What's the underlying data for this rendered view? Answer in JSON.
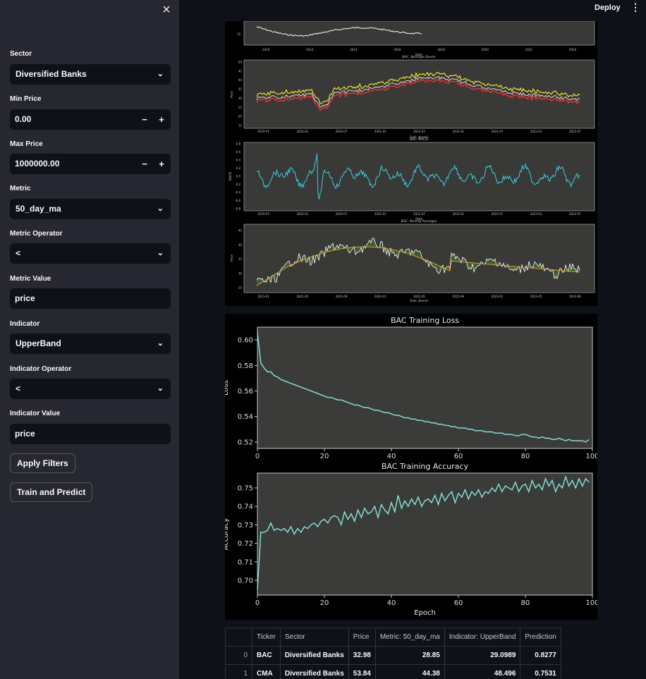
{
  "sidebar": {
    "close_icon": "close-icon",
    "sector": {
      "label": "Sector",
      "value": "Diversified Banks"
    },
    "min_price": {
      "label": "Min Price",
      "value": "0.00",
      "minus": "−",
      "plus": "+"
    },
    "max_price": {
      "label": "Max Price",
      "value": "1000000.00",
      "minus": "−",
      "plus": "+"
    },
    "metric": {
      "label": "Metric",
      "value": "50_day_ma"
    },
    "metric_operator": {
      "label": "Metric Operator",
      "value": "<"
    },
    "metric_value": {
      "label": "Metric Value",
      "value": "price"
    },
    "indicator": {
      "label": "Indicator",
      "value": "UpperBand"
    },
    "indicator_operator": {
      "label": "Indicator Operator",
      "value": "<"
    },
    "indicator_value": {
      "label": "Indicator Value",
      "value": "price"
    },
    "apply_button": "Apply Filters",
    "train_button": "Train and Predict"
  },
  "header": {
    "deploy": "Deploy",
    "menu_icon": "kebab-menu-icon"
  },
  "technical_figure": {
    "top_xticks": [
      "2010",
      "2012",
      "2014",
      "2016",
      "2018",
      "2020",
      "2022",
      "2024"
    ],
    "top_ytick": "10",
    "top_xlabel": "Date",
    "bollinger": {
      "title": "BAC: Bollinger Bands",
      "ylabel": "Price",
      "xlabel": "Date_altered",
      "yticks": [
        "50",
        "45",
        "40",
        "35",
        "30",
        "25",
        "20",
        "15"
      ],
      "xticks": [
        "2019-07",
        "2020-01",
        "2020-07",
        "2021-01",
        "2021-07",
        "2022-01",
        "2022-07",
        "2023-01",
        "2023-07"
      ]
    },
    "macd": {
      "title": "BAC: MACD",
      "ylabel": "MACD",
      "xlabel": "Date",
      "yticks": [
        "0.8",
        "0.6",
        "0.4",
        "0.2",
        "0.0",
        "-0.2",
        "-0.4",
        "-0.6",
        "-0.8"
      ],
      "xticks": [
        "2019-07",
        "2020-01",
        "2020-07",
        "2021-01",
        "2021-07",
        "2022-01",
        "2022-07",
        "2023-01",
        "2023-07"
      ]
    },
    "moving_avg": {
      "title": "BAC: Moving Averages",
      "ylabel": "Price",
      "xlabel": "Date_altered",
      "yticks": [
        "45",
        "40",
        "35",
        "30",
        "25"
      ],
      "xticks": [
        "2021-01",
        "2021-05",
        "2021-09",
        "2022-01",
        "2022-05",
        "2022-09",
        "2023-01",
        "2023-05",
        "2023-09"
      ]
    },
    "colors": {
      "price": "#ffffff",
      "upper": "#e6e62a",
      "lower": "#e03030",
      "macd": "#3ad0e0",
      "ma": "#e0a020"
    }
  },
  "chart_data": [
    {
      "type": "line",
      "title": "BAC Training Loss",
      "xlabel": "",
      "ylabel": "Loss",
      "xlim": [
        0,
        100
      ],
      "ylim": [
        0.515,
        0.61
      ],
      "xticks": [
        0,
        20,
        40,
        60,
        80,
        100
      ],
      "yticks": [
        0.52,
        0.54,
        0.56,
        0.58,
        0.6
      ],
      "x": [
        0,
        1,
        2,
        3,
        4,
        5,
        6,
        7,
        8,
        9,
        10,
        11,
        12,
        13,
        14,
        15,
        16,
        17,
        18,
        19,
        20,
        21,
        22,
        23,
        24,
        25,
        26,
        27,
        28,
        29,
        30,
        31,
        32,
        33,
        34,
        35,
        36,
        37,
        38,
        39,
        40,
        41,
        42,
        43,
        44,
        45,
        46,
        47,
        48,
        49,
        50,
        51,
        52,
        53,
        54,
        55,
        56,
        57,
        58,
        59,
        60,
        61,
        62,
        63,
        64,
        65,
        66,
        67,
        68,
        69,
        70,
        71,
        72,
        73,
        74,
        75,
        76,
        77,
        78,
        79,
        80,
        81,
        82,
        83,
        84,
        85,
        86,
        87,
        88,
        89,
        90,
        91,
        92,
        93,
        94,
        95,
        96,
        97,
        98,
        99
      ],
      "y": [
        0.606,
        0.582,
        0.578,
        0.575,
        0.575,
        0.572,
        0.571,
        0.569,
        0.568,
        0.567,
        0.566,
        0.565,
        0.564,
        0.563,
        0.562,
        0.561,
        0.56,
        0.559,
        0.558,
        0.557,
        0.556,
        0.555,
        0.555,
        0.554,
        0.553,
        0.553,
        0.552,
        0.551,
        0.55,
        0.549,
        0.549,
        0.548,
        0.547,
        0.547,
        0.546,
        0.545,
        0.545,
        0.544,
        0.543,
        0.543,
        0.542,
        0.541,
        0.541,
        0.54,
        0.539,
        0.539,
        0.538,
        0.538,
        0.537,
        0.537,
        0.536,
        0.536,
        0.535,
        0.535,
        0.534,
        0.534,
        0.533,
        0.533,
        0.532,
        0.532,
        0.531,
        0.531,
        0.531,
        0.53,
        0.53,
        0.529,
        0.529,
        0.529,
        0.528,
        0.528,
        0.528,
        0.527,
        0.527,
        0.527,
        0.526,
        0.526,
        0.526,
        0.525,
        0.525,
        0.526,
        0.526,
        0.525,
        0.524,
        0.524,
        0.523,
        0.524,
        0.523,
        0.523,
        0.522,
        0.522,
        0.523,
        0.522,
        0.521,
        0.522,
        0.521,
        0.521,
        0.521,
        0.521,
        0.52,
        0.522
      ],
      "color": "#7fdfd4"
    },
    {
      "type": "line",
      "title": "BAC Training Accuracy",
      "xlabel": "Epoch",
      "ylabel": "Accuracy",
      "xlim": [
        0,
        100
      ],
      "ylim": [
        0.692,
        0.758
      ],
      "xticks": [
        0,
        20,
        40,
        60,
        80,
        100
      ],
      "yticks": [
        0.7,
        0.71,
        0.72,
        0.73,
        0.74,
        0.75
      ],
      "x": [
        0,
        1,
        2,
        3,
        4,
        5,
        6,
        7,
        8,
        9,
        10,
        11,
        12,
        13,
        14,
        15,
        16,
        17,
        18,
        19,
        20,
        21,
        22,
        23,
        24,
        25,
        26,
        27,
        28,
        29,
        30,
        31,
        32,
        33,
        34,
        35,
        36,
        37,
        38,
        39,
        40,
        41,
        42,
        43,
        44,
        45,
        46,
        47,
        48,
        49,
        50,
        51,
        52,
        53,
        54,
        55,
        56,
        57,
        58,
        59,
        60,
        61,
        62,
        63,
        64,
        65,
        66,
        67,
        68,
        69,
        70,
        71,
        72,
        73,
        74,
        75,
        76,
        77,
        78,
        79,
        80,
        81,
        82,
        83,
        84,
        85,
        86,
        87,
        88,
        89,
        90,
        91,
        92,
        93,
        94,
        95,
        96,
        97,
        98,
        99
      ],
      "y": [
        0.695,
        0.726,
        0.726,
        0.727,
        0.731,
        0.727,
        0.728,
        0.727,
        0.728,
        0.726,
        0.729,
        0.725,
        0.728,
        0.726,
        0.729,
        0.728,
        0.73,
        0.731,
        0.729,
        0.732,
        0.733,
        0.731,
        0.734,
        0.735,
        0.734,
        0.73,
        0.737,
        0.733,
        0.736,
        0.732,
        0.738,
        0.734,
        0.739,
        0.736,
        0.737,
        0.74,
        0.734,
        0.741,
        0.738,
        0.736,
        0.742,
        0.737,
        0.746,
        0.739,
        0.743,
        0.74,
        0.744,
        0.741,
        0.745,
        0.74,
        0.743,
        0.744,
        0.742,
        0.746,
        0.741,
        0.747,
        0.743,
        0.746,
        0.748,
        0.742,
        0.747,
        0.745,
        0.749,
        0.744,
        0.748,
        0.746,
        0.749,
        0.745,
        0.748,
        0.747,
        0.75,
        0.748,
        0.752,
        0.748,
        0.751,
        0.75,
        0.749,
        0.753,
        0.748,
        0.751,
        0.752,
        0.748,
        0.754,
        0.75,
        0.752,
        0.749,
        0.755,
        0.751,
        0.754,
        0.748,
        0.752,
        0.75,
        0.756,
        0.751,
        0.754,
        0.75,
        0.755,
        0.751,
        0.755,
        0.753
      ],
      "color": "#7fdfd4"
    }
  ],
  "table": {
    "columns": [
      "",
      "Ticker",
      "Sector",
      "Price",
      "Metric: 50_day_ma",
      "Indicator: UpperBand",
      "Prediction"
    ],
    "rows": [
      [
        "0",
        "BAC",
        "Diversified Banks",
        "32.98",
        "28.85",
        "29.0989",
        "0.8277"
      ],
      [
        "1",
        "CMA",
        "Diversified Banks",
        "53.84",
        "44.38",
        "48.496",
        "0.7531"
      ]
    ]
  }
}
